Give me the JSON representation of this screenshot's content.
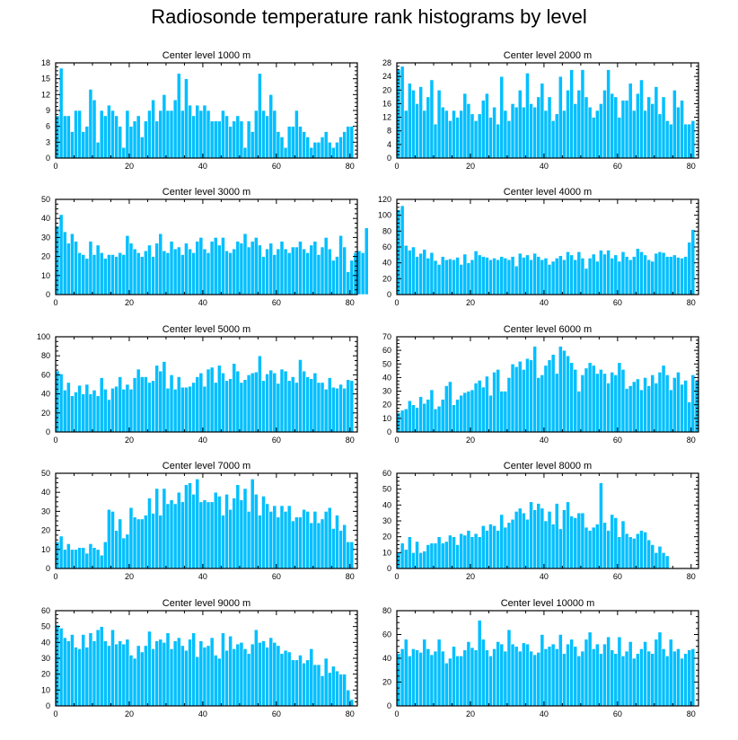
{
  "colors": {
    "bar": "#00bfff",
    "frame": "#000000",
    "background": "#ffffff"
  },
  "chart_data": {
    "type": "bar",
    "title": "Radiosonde temperature rank histograms by level",
    "xlim": [
      0,
      82
    ],
    "xticks": [
      0,
      20,
      40,
      60,
      80
    ],
    "panels": [
      {
        "title": "Center level 1000 m",
        "ylim": [
          0,
          18
        ],
        "yticks": [
          0,
          3,
          6,
          9,
          12,
          15,
          18
        ],
        "values": [
          8,
          17,
          8,
          8,
          5,
          9,
          9,
          5,
          6,
          13,
          11,
          3,
          9,
          8,
          10,
          9,
          8,
          6,
          2,
          9,
          6,
          7,
          8,
          4,
          7,
          9,
          11,
          7,
          9,
          12,
          9,
          9,
          11,
          16,
          9,
          15,
          10,
          8,
          10,
          9,
          10,
          9,
          7,
          7,
          7,
          9,
          8,
          6,
          7,
          8,
          7,
          2,
          7,
          5,
          9,
          16,
          9,
          8,
          12,
          9,
          5,
          4,
          2,
          6,
          6,
          9,
          6,
          5,
          4,
          2,
          3,
          3,
          4,
          5,
          3,
          2,
          3,
          4,
          5,
          6,
          6
        ]
      },
      {
        "title": "Center level 2000 m",
        "ylim": [
          0,
          28
        ],
        "yticks": [
          0,
          4,
          8,
          12,
          16,
          20,
          24,
          28
        ],
        "values": [
          26,
          27,
          14,
          22,
          20,
          16,
          21,
          14,
          18,
          23,
          10,
          20,
          15,
          14,
          11,
          14,
          12,
          14,
          19,
          16,
          13,
          11,
          13,
          17,
          19,
          12,
          15,
          10,
          24,
          14,
          11,
          16,
          15,
          20,
          15,
          25,
          16,
          15,
          18,
          22,
          14,
          18,
          11,
          13,
          24,
          14,
          20,
          26,
          16,
          20,
          26,
          18,
          15,
          12,
          14,
          16,
          20,
          26,
          19,
          18,
          12,
          17,
          17,
          22,
          14,
          19,
          23,
          14,
          18,
          16,
          21,
          13,
          18,
          11,
          10,
          20,
          15,
          17,
          10,
          10,
          11
        ]
      },
      {
        "title": "Center level 3000 m",
        "ylim": [
          0,
          50
        ],
        "yticks": [
          0,
          10,
          20,
          30,
          40,
          50
        ],
        "values": [
          36,
          42,
          33,
          27,
          32,
          28,
          22,
          21,
          19,
          28,
          21,
          26,
          22,
          19,
          21,
          21,
          20,
          22,
          21,
          31,
          27,
          24,
          22,
          20,
          23,
          26,
          20,
          27,
          32,
          23,
          22,
          28,
          24,
          25,
          21,
          27,
          24,
          22,
          28,
          30,
          24,
          22,
          28,
          30,
          26,
          30,
          23,
          22,
          24,
          28,
          27,
          32,
          25,
          28,
          30,
          26,
          20,
          24,
          27,
          21,
          24,
          28,
          24,
          22,
          25,
          25,
          28,
          24,
          22,
          26,
          28,
          21,
          25,
          30,
          24,
          18,
          20,
          31,
          25,
          12,
          18,
          22,
          23,
          22,
          35
        ]
      },
      {
        "title": "Center level 4000 m",
        "ylim": [
          0,
          120
        ],
        "yticks": [
          0,
          20,
          40,
          60,
          80,
          100,
          120
        ],
        "values": [
          107,
          112,
          62,
          56,
          60,
          48,
          52,
          57,
          46,
          53,
          43,
          38,
          48,
          44,
          45,
          44,
          47,
          38,
          51,
          40,
          44,
          55,
          50,
          48,
          47,
          44,
          46,
          44,
          48,
          46,
          44,
          48,
          36,
          52,
          47,
          50,
          44,
          52,
          48,
          44,
          46,
          38,
          42,
          46,
          49,
          44,
          54,
          50,
          44,
          54,
          46,
          33,
          46,
          51,
          42,
          56,
          51,
          56,
          46,
          50,
          42,
          54,
          48,
          44,
          48,
          58,
          54,
          50,
          44,
          42,
          52,
          54,
          53,
          48,
          48,
          50,
          47,
          46,
          48,
          66,
          82
        ]
      },
      {
        "title": "Center level 5000 m",
        "ylim": [
          0,
          100
        ],
        "yticks": [
          0,
          20,
          40,
          60,
          80,
          100
        ],
        "values": [
          64,
          61,
          44,
          52,
          38,
          42,
          49,
          40,
          50,
          40,
          44,
          38,
          57,
          45,
          34,
          46,
          48,
          58,
          45,
          50,
          45,
          57,
          66,
          58,
          58,
          52,
          54,
          70,
          64,
          74,
          46,
          60,
          45,
          58,
          47,
          47,
          48,
          52,
          58,
          62,
          48,
          66,
          68,
          52,
          70,
          62,
          54,
          56,
          72,
          64,
          52,
          55,
          60,
          62,
          63,
          80,
          54,
          61,
          65,
          62,
          51,
          66,
          64,
          54,
          58,
          52,
          76,
          64,
          58,
          56,
          62,
          52,
          52,
          45,
          57,
          47,
          46,
          50,
          46,
          55,
          54
        ]
      },
      {
        "title": "Center level 6000 m",
        "ylim": [
          0,
          70
        ],
        "yticks": [
          0,
          10,
          20,
          30,
          40,
          50,
          60,
          70
        ],
        "values": [
          14,
          16,
          17,
          23,
          20,
          18,
          26,
          21,
          24,
          31,
          17,
          19,
          24,
          34,
          37,
          20,
          24,
          27,
          29,
          30,
          31,
          36,
          38,
          33,
          41,
          27,
          44,
          46,
          30,
          30,
          40,
          50,
          48,
          52,
          46,
          54,
          53,
          63,
          40,
          42,
          49,
          53,
          57,
          43,
          63,
          60,
          56,
          51,
          46,
          30,
          42,
          47,
          51,
          49,
          43,
          46,
          43,
          36,
          44,
          42,
          51,
          46,
          32,
          34,
          37,
          39,
          31,
          40,
          34,
          42,
          36,
          44,
          49,
          42,
          31,
          40,
          44,
          35,
          38,
          22,
          42,
          38
        ]
      },
      {
        "title": "Center level 7000 m",
        "ylim": [
          0,
          50
        ],
        "yticks": [
          0,
          10,
          20,
          30,
          40,
          50
        ],
        "values": [
          14,
          17,
          10,
          13,
          10,
          10,
          11,
          11,
          8,
          13,
          11,
          10,
          7,
          14,
          31,
          30,
          20,
          26,
          16,
          18,
          32,
          27,
          26,
          26,
          28,
          37,
          29,
          42,
          28,
          42,
          34,
          36,
          34,
          40,
          35,
          44,
          45,
          39,
          47,
          35,
          36,
          35,
          35,
          40,
          38,
          28,
          39,
          31,
          37,
          44,
          36,
          42,
          30,
          47,
          39,
          28,
          38,
          34,
          30,
          33,
          27,
          33,
          30,
          33,
          25,
          27,
          27,
          31,
          30,
          24,
          30,
          24,
          26,
          30,
          32,
          21,
          28,
          20,
          23,
          14,
          14
        ]
      },
      {
        "title": "Center level 8000 m",
        "ylim": [
          0,
          60
        ],
        "yticks": [
          0,
          10,
          20,
          30,
          40,
          50,
          60
        ],
        "values": [
          10,
          16,
          12,
          20,
          10,
          17,
          10,
          11,
          15,
          16,
          16,
          20,
          16,
          17,
          21,
          20,
          15,
          22,
          21,
          24,
          20,
          22,
          20,
          27,
          24,
          28,
          27,
          24,
          34,
          26,
          29,
          31,
          36,
          38,
          35,
          31,
          42,
          37,
          41,
          38,
          30,
          36,
          28,
          41,
          25,
          37,
          42,
          33,
          32,
          35,
          35,
          26,
          24,
          26,
          28,
          54,
          29,
          24,
          34,
          32,
          20,
          30,
          22,
          20,
          19,
          22,
          24,
          23,
          18,
          15,
          10,
          14,
          10,
          8
        ]
      },
      {
        "title": "Center level 9000 m",
        "ylim": [
          0,
          60
        ],
        "yticks": [
          0,
          10,
          20,
          30,
          40,
          50,
          60
        ],
        "values": [
          51,
          49,
          43,
          41,
          45,
          37,
          36,
          45,
          37,
          46,
          41,
          48,
          50,
          41,
          38,
          48,
          39,
          41,
          39,
          42,
          32,
          30,
          38,
          34,
          38,
          47,
          36,
          41,
          42,
          40,
          46,
          36,
          41,
          43,
          38,
          35,
          42,
          46,
          31,
          41,
          37,
          38,
          43,
          32,
          30,
          46,
          35,
          44,
          36,
          39,
          40,
          36,
          33,
          39,
          48,
          40,
          41,
          37,
          43,
          40,
          38,
          33,
          35,
          34,
          29,
          29,
          32,
          27,
          29,
          36,
          26,
          26,
          19,
          30,
          21,
          25,
          22,
          20,
          20,
          10,
          4
        ]
      },
      {
        "title": "Center level 10000 m",
        "ylim": [
          0,
          80
        ],
        "yticks": [
          0,
          20,
          40,
          60,
          80
        ],
        "values": [
          44,
          48,
          56,
          42,
          48,
          47,
          45,
          56,
          48,
          43,
          46,
          56,
          46,
          36,
          40,
          50,
          42,
          42,
          47,
          54,
          49,
          47,
          72,
          56,
          47,
          42,
          48,
          54,
          52,
          46,
          64,
          52,
          50,
          46,
          53,
          52,
          46,
          43,
          45,
          60,
          48,
          50,
          52,
          48,
          60,
          44,
          52,
          56,
          50,
          42,
          46,
          56,
          62,
          48,
          52,
          44,
          52,
          58,
          47,
          44,
          58,
          42,
          46,
          54,
          40,
          44,
          48,
          54,
          46,
          44,
          56,
          62,
          48,
          42,
          56,
          46,
          48,
          40,
          44,
          47,
          48
        ]
      }
    ]
  }
}
